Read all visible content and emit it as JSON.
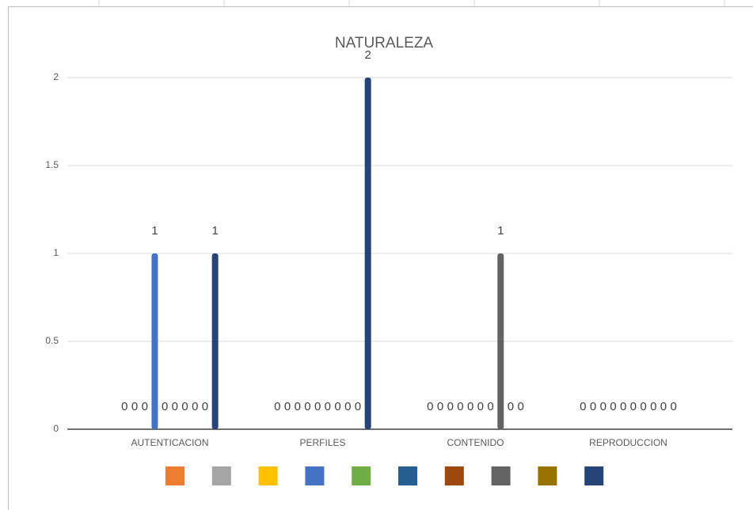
{
  "chart_data": {
    "type": "bar",
    "title": "NATURALEZA",
    "categories": [
      "AUTENTICACION",
      "PERFILES",
      "CONTENIDO",
      "REPRODUCCION"
    ],
    "series": [
      {
        "color": "#ed7d31",
        "values": [
          0,
          0,
          0,
          0
        ]
      },
      {
        "color": "#a5a5a5",
        "values": [
          0,
          0,
          0,
          0
        ]
      },
      {
        "color": "#ffc000",
        "values": [
          0,
          0,
          0,
          0
        ]
      },
      {
        "color": "#4472c4",
        "values": [
          1,
          0,
          0,
          0
        ]
      },
      {
        "color": "#70ad47",
        "values": [
          0,
          0,
          0,
          0
        ]
      },
      {
        "color": "#255e91",
        "values": [
          0,
          0,
          0,
          0
        ]
      },
      {
        "color": "#9e480e",
        "values": [
          0,
          0,
          0,
          0
        ]
      },
      {
        "color": "#636363",
        "values": [
          0,
          0,
          1,
          0
        ]
      },
      {
        "color": "#997300",
        "values": [
          0,
          0,
          0,
          0
        ]
      },
      {
        "color": "#264478",
        "values": [
          1,
          2,
          0,
          0
        ]
      }
    ],
    "ylim": [
      0,
      2
    ],
    "yticks": [
      0,
      0.5,
      1,
      1.5,
      2
    ],
    "grid": true,
    "data_labels": true,
    "legend": "bottom"
  }
}
